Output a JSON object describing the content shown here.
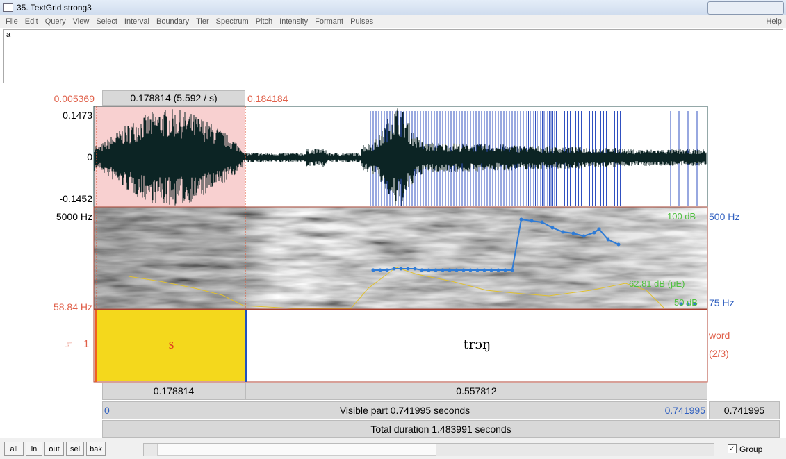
{
  "window": {
    "title": "35. TextGrid strong3"
  },
  "menu": {
    "items": [
      "File",
      "Edit",
      "Query",
      "View",
      "Select",
      "Interval",
      "Boundary",
      "Tier",
      "Spectrum",
      "Pitch",
      "Intensity",
      "Formant",
      "Pulses"
    ],
    "help": "Help"
  },
  "text_field": "a",
  "editor": {
    "selection": {
      "start": "0.005369",
      "length": "0.178814 (5.592 / s)",
      "end": "0.184184"
    },
    "waveform": {
      "max": "0.1473",
      "zero": "0",
      "min": "-0.1452"
    },
    "spectrogram": {
      "max_freq": "5000 Hz",
      "min_freq": "58.84 Hz",
      "pitch_max": "500 Hz",
      "pitch_min": "75 Hz",
      "intensity_max": "100 dB",
      "intensity_value": "62.81 dB (μE)",
      "intensity_min": "50 dB"
    },
    "tier": {
      "number": "1",
      "name": "word",
      "count": "(2/3)",
      "intervals": [
        "s",
        "trɔŋ"
      ]
    },
    "durations": [
      "0.178814",
      "0.557812"
    ],
    "visible": {
      "start": "0",
      "label": "Visible part 0.741995 seconds",
      "end": "0.741995",
      "window": "0.741995"
    },
    "total": "Total duration 1.483991 seconds"
  },
  "buttons": [
    "all",
    "in",
    "out",
    "sel",
    "bak"
  ],
  "group": "Group"
}
